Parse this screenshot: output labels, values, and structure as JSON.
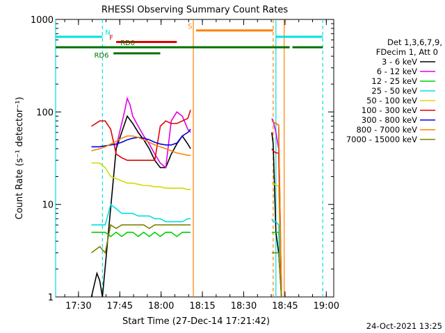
{
  "chart_data": {
    "type": "line",
    "title": "RHESSI Observing Summary Count Rates",
    "xlabel": "Start Time (27-Dec-14 17:21:42)",
    "ylabel": "Count Rate (s⁻¹ detector⁻¹)",
    "yscale": "log",
    "ylim": [
      1,
      1000
    ],
    "xlim_minutes": [
      0,
      101
    ],
    "x_ticks": [
      {
        "t": 8.3,
        "label": "17:30"
      },
      {
        "t": 23.3,
        "label": "17:45"
      },
      {
        "t": 38.3,
        "label": "18:00"
      },
      {
        "t": 53.3,
        "label": "18:15"
      },
      {
        "t": 68.3,
        "label": "18:30"
      },
      {
        "t": 83.3,
        "label": "18:45"
      },
      {
        "t": 98.3,
        "label": "19:00"
      }
    ],
    "y_ticks": [
      {
        "v": 1,
        "label": "1"
      },
      {
        "v": 10,
        "label": "10"
      },
      {
        "v": 100,
        "label": "100"
      },
      {
        "v": 1000,
        "label": "1000"
      }
    ],
    "legend_header": [
      "Det 1,3,6,7,9,",
      "FDecim 1, Att 0"
    ],
    "legend_placement": "right",
    "series": [
      {
        "name": "3 - 6 keV",
        "color": "#000000",
        "points": [
          [
            13,
            1
          ],
          [
            15,
            1.8
          ],
          [
            16,
            1.5
          ],
          [
            17,
            1
          ],
          [
            22,
            40
          ],
          [
            24,
            60
          ],
          [
            26,
            90
          ],
          [
            28,
            75
          ],
          [
            30,
            60
          ],
          [
            32,
            50
          ],
          [
            34,
            40
          ],
          [
            36,
            30
          ],
          [
            38,
            25
          ],
          [
            40,
            25
          ],
          [
            42,
            35
          ],
          [
            44,
            45
          ],
          [
            46,
            55
          ],
          [
            48,
            45
          ],
          [
            49,
            40
          ]
        ],
        "points2": [
          [
            78.5,
            60
          ],
          [
            79,
            45
          ],
          [
            80,
            5
          ],
          [
            81,
            3
          ],
          [
            82,
            1
          ]
        ]
      },
      {
        "name": "6 - 12 keV",
        "color": "#e000e0",
        "points": [
          [
            22,
            42
          ],
          [
            24,
            75
          ],
          [
            25,
            100
          ],
          [
            26,
            140
          ],
          [
            27,
            120
          ],
          [
            28,
            90
          ],
          [
            30,
            70
          ],
          [
            32,
            55
          ],
          [
            34,
            45
          ],
          [
            36,
            35
          ],
          [
            38,
            28
          ],
          [
            40,
            25
          ],
          [
            42,
            80
          ],
          [
            44,
            100
          ],
          [
            46,
            90
          ],
          [
            48,
            65
          ],
          [
            49,
            60
          ]
        ],
        "points2": [
          [
            78.5,
            85
          ],
          [
            79,
            80
          ],
          [
            80,
            60
          ],
          [
            81,
            40
          ],
          [
            82,
            1
          ]
        ]
      },
      {
        "name": "12 - 25 keV",
        "color": "#00d000",
        "points": [
          [
            13,
            5
          ],
          [
            16,
            5
          ],
          [
            18,
            5
          ],
          [
            20,
            4.5
          ],
          [
            22,
            5
          ],
          [
            24,
            4.5
          ],
          [
            26,
            5
          ],
          [
            28,
            5
          ],
          [
            30,
            4.5
          ],
          [
            32,
            5
          ],
          [
            34,
            4.5
          ],
          [
            36,
            5
          ],
          [
            38,
            4.5
          ],
          [
            40,
            5
          ],
          [
            42,
            5
          ],
          [
            44,
            4.5
          ],
          [
            46,
            5
          ],
          [
            48,
            5
          ],
          [
            49,
            5
          ]
        ],
        "points2": [
          [
            78.5,
            5
          ],
          [
            79,
            5
          ],
          [
            80,
            5
          ],
          [
            81,
            5
          ],
          [
            82,
            1
          ]
        ]
      },
      {
        "name": "25 - 50 keV",
        "color": "#00e0e0",
        "points": [
          [
            13,
            6
          ],
          [
            16,
            6
          ],
          [
            18,
            6
          ],
          [
            20,
            10
          ],
          [
            22,
            9
          ],
          [
            24,
            8
          ],
          [
            26,
            8
          ],
          [
            28,
            8
          ],
          [
            30,
            7.5
          ],
          [
            32,
            7.5
          ],
          [
            34,
            7.5
          ],
          [
            36,
            7
          ],
          [
            38,
            7
          ],
          [
            40,
            6.5
          ],
          [
            42,
            6.5
          ],
          [
            44,
            6.5
          ],
          [
            46,
            6.5
          ],
          [
            48,
            7
          ],
          [
            49,
            7
          ]
        ],
        "points2": [
          [
            78.5,
            7
          ],
          [
            79,
            6.5
          ],
          [
            80,
            6.5
          ],
          [
            81,
            6
          ],
          [
            82,
            1
          ]
        ]
      },
      {
        "name": "50 - 100 keV",
        "color": "#d8d800",
        "points": [
          [
            13,
            28
          ],
          [
            16,
            28
          ],
          [
            18,
            25
          ],
          [
            20,
            20
          ],
          [
            22,
            19
          ],
          [
            24,
            18
          ],
          [
            26,
            17
          ],
          [
            28,
            17
          ],
          [
            30,
            16.5
          ],
          [
            32,
            16
          ],
          [
            34,
            16
          ],
          [
            36,
            15.5
          ],
          [
            38,
            15.5
          ],
          [
            40,
            15
          ],
          [
            42,
            15
          ],
          [
            44,
            15
          ],
          [
            46,
            15
          ],
          [
            48,
            14.5
          ],
          [
            49,
            14.5
          ]
        ],
        "points2": [
          [
            78.5,
            17
          ],
          [
            79,
            17
          ],
          [
            80,
            16
          ],
          [
            81,
            16
          ],
          [
            82,
            1
          ]
        ]
      },
      {
        "name": "100 - 300 keV",
        "color": "#e00000",
        "points": [
          [
            13,
            70
          ],
          [
            16,
            80
          ],
          [
            18,
            80
          ],
          [
            20,
            65
          ],
          [
            22,
            35
          ],
          [
            24,
            32
          ],
          [
            26,
            30
          ],
          [
            28,
            30
          ],
          [
            30,
            30
          ],
          [
            32,
            30
          ],
          [
            34,
            30
          ],
          [
            36,
            30
          ],
          [
            38,
            70
          ],
          [
            40,
            80
          ],
          [
            42,
            75
          ],
          [
            44,
            75
          ],
          [
            46,
            80
          ],
          [
            48,
            85
          ],
          [
            49,
            105
          ]
        ],
        "points2": [
          [
            78.5,
            40
          ],
          [
            79,
            38
          ],
          [
            80,
            36
          ],
          [
            81,
            36
          ],
          [
            82,
            1
          ]
        ]
      },
      {
        "name": "300 - 800 keV",
        "color": "#0000e0",
        "points": [
          [
            13,
            42
          ],
          [
            16,
            42
          ],
          [
            18,
            43
          ],
          [
            20,
            44
          ],
          [
            22,
            45
          ],
          [
            24,
            47
          ],
          [
            26,
            50
          ],
          [
            28,
            52
          ],
          [
            30,
            53
          ],
          [
            32,
            52
          ],
          [
            34,
            50
          ],
          [
            36,
            47
          ],
          [
            38,
            45
          ],
          [
            40,
            44
          ],
          [
            42,
            44
          ],
          [
            44,
            46
          ],
          [
            46,
            55
          ],
          [
            48,
            60
          ],
          [
            49,
            65
          ]
        ],
        "points2": [
          [
            78.5,
            80
          ],
          [
            79,
            78
          ],
          [
            80,
            75
          ],
          [
            81,
            72
          ],
          [
            82,
            1
          ]
        ]
      },
      {
        "name": "800 - 7000 keV",
        "color": "#ff8000",
        "points": [
          [
            13,
            38
          ],
          [
            16,
            40
          ],
          [
            18,
            42
          ],
          [
            20,
            45
          ],
          [
            22,
            48
          ],
          [
            24,
            52
          ],
          [
            26,
            55
          ],
          [
            28,
            55
          ],
          [
            30,
            53
          ],
          [
            32,
            50
          ],
          [
            34,
            47
          ],
          [
            36,
            44
          ],
          [
            38,
            42
          ],
          [
            40,
            40
          ],
          [
            42,
            38
          ],
          [
            44,
            36
          ],
          [
            46,
            35
          ],
          [
            48,
            34
          ],
          [
            49,
            34
          ]
        ],
        "points2": [
          [
            78.5,
            80
          ],
          [
            79,
            78
          ],
          [
            80,
            75
          ],
          [
            81,
            72
          ],
          [
            82,
            1
          ]
        ]
      },
      {
        "name": "7000 - 15000 keV",
        "color": "#808000",
        "points": [
          [
            13,
            3
          ],
          [
            16,
            3.5
          ],
          [
            18,
            3
          ],
          [
            20,
            6
          ],
          [
            22,
            5.5
          ],
          [
            24,
            6
          ],
          [
            26,
            6
          ],
          [
            28,
            6
          ],
          [
            30,
            6
          ],
          [
            32,
            6
          ],
          [
            34,
            5.5
          ],
          [
            36,
            6
          ],
          [
            38,
            6
          ],
          [
            40,
            6
          ],
          [
            42,
            6
          ],
          [
            44,
            6
          ],
          [
            46,
            6
          ],
          [
            48,
            6
          ],
          [
            49,
            6
          ]
        ],
        "points2": [
          [
            78.5,
            3
          ],
          [
            79,
            3
          ],
          [
            80,
            3
          ],
          [
            81,
            3
          ],
          [
            82,
            1
          ]
        ]
      }
    ],
    "flag_bars": [
      {
        "name": "N",
        "color": "#00e0e0",
        "y": 650,
        "segments": [
          [
            0,
            17
          ],
          [
            80,
            97
          ]
        ],
        "label_t": 18
      },
      {
        "name": "S",
        "color": "#ff8000",
        "y": 760,
        "segments": [
          [
            51,
            79
          ]
        ],
        "label_t": 48
      },
      {
        "name": "F",
        "color": "#e00000",
        "y": 570,
        "segments": [
          [
            22,
            44
          ]
        ],
        "label_t": 19.5
      },
      {
        "name": "RD0",
        "color": "#007000",
        "y": 500,
        "segments": [
          [
            0,
            79
          ],
          [
            79,
            85
          ],
          [
            86,
            97
          ]
        ],
        "label_t": 23.5
      },
      {
        "name": "RD6",
        "color": "#007000",
        "y": 430,
        "segments": [
          [
            21,
            38
          ]
        ],
        "label_t": 14
      }
    ],
    "vertical_markers": [
      {
        "t": 0,
        "color": "#00e0e0",
        "dash": false
      },
      {
        "t": 17,
        "color": "#00e0e0",
        "dash": true
      },
      {
        "t": 50,
        "color": "#ff8000",
        "dash": false
      },
      {
        "t": 79,
        "color": "#ff8000",
        "dash": true
      },
      {
        "t": 80,
        "color": "#00e0e0",
        "dash": false
      },
      {
        "t": 83,
        "color": "#ff8000",
        "dash": false
      },
      {
        "t": 97,
        "color": "#00e0e0",
        "dash": true
      }
    ],
    "timestamp": "24-Oct-2021 13:25"
  }
}
